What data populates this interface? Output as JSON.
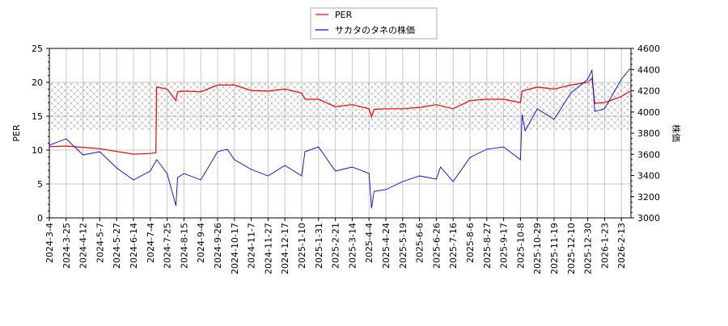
{
  "chart_data": {
    "type": "line",
    "title": "",
    "xlabel": "",
    "ylabel_left": "PER",
    "ylabel_right": "株価",
    "ylim_left": [
      0,
      25
    ],
    "ylim_right": [
      3000,
      4600
    ],
    "yticks_left": [
      0,
      5,
      10,
      15,
      20,
      25
    ],
    "yticks_right": [
      3000,
      3200,
      3400,
      3600,
      3800,
      4000,
      4200,
      4400,
      4600
    ],
    "xticks": [
      "2024-3-4",
      "2024-3-25",
      "2024-4-12",
      "2024-5-7",
      "2024-5-27",
      "2024-6-14",
      "2024-7-4",
      "2024-7-25",
      "2024-8-15",
      "2024-9-4",
      "2024-9-26",
      "2024-10-17",
      "2024-11-7",
      "2024-11-27",
      "2024-12-17",
      "2025-1-10",
      "2025-1-31",
      "2025-2-21",
      "2025-3-14",
      "2025-4-4",
      "2025-4-24",
      "2025-5-19",
      "2025-6-6",
      "2025-6-26",
      "2025-7-16",
      "2025-8-6",
      "2025-8-27",
      "2025-9-17",
      "2025-10-8",
      "2025-10-29",
      "2025-11-19",
      "2025-12-10",
      "2025-12-30",
      "2026-1-23",
      "2026-2-13"
    ],
    "grid": true,
    "legend_position": "top-center",
    "shaded_band_left": [
      13,
      20
    ],
    "colors": {
      "per": "#ff0000",
      "price": "#0000ff",
      "band": "#999999",
      "grid": "#c8c8c8"
    },
    "series": [
      {
        "name": "PER",
        "axis": "left",
        "points": [
          [
            "2024-3-4",
            10.5
          ],
          [
            "2024-3-25",
            10.6
          ],
          [
            "2024-4-12",
            10.4
          ],
          [
            "2024-5-7",
            10.2
          ],
          [
            "2024-5-27",
            9.8
          ],
          [
            "2024-6-14",
            9.4
          ],
          [
            "2024-7-4",
            9.5
          ],
          [
            "2024-7-11",
            9.6
          ],
          [
            "2024-7-12",
            19.3
          ],
          [
            "2024-7-25",
            19.0
          ],
          [
            "2024-8-5",
            17.3
          ],
          [
            "2024-8-7",
            18.6
          ],
          [
            "2024-8-15",
            18.7
          ],
          [
            "2024-9-4",
            18.6
          ],
          [
            "2024-9-26",
            19.6
          ],
          [
            "2024-10-17",
            19.6
          ],
          [
            "2024-11-7",
            18.8
          ],
          [
            "2024-11-27",
            18.7
          ],
          [
            "2024-12-17",
            19.0
          ],
          [
            "2025-1-10",
            18.4
          ],
          [
            "2025-1-14",
            17.5
          ],
          [
            "2025-1-31",
            17.5
          ],
          [
            "2025-2-21",
            16.4
          ],
          [
            "2025-3-14",
            16.7
          ],
          [
            "2025-4-4",
            16.1
          ],
          [
            "2025-4-7",
            14.9
          ],
          [
            "2025-4-10",
            16.0
          ],
          [
            "2025-4-24",
            16.1
          ],
          [
            "2025-5-19",
            16.1
          ],
          [
            "2025-6-6",
            16.3
          ],
          [
            "2025-6-26",
            16.7
          ],
          [
            "2025-7-16",
            16.1
          ],
          [
            "2025-8-6",
            17.3
          ],
          [
            "2025-8-27",
            17.5
          ],
          [
            "2025-9-17",
            17.5
          ],
          [
            "2025-10-8",
            17.0
          ],
          [
            "2025-10-10",
            18.7
          ],
          [
            "2025-10-29",
            19.3
          ],
          [
            "2025-11-19",
            19.0
          ],
          [
            "2025-12-10",
            19.6
          ],
          [
            "2025-12-30",
            20.0
          ],
          [
            "2026-1-5",
            20.6
          ],
          [
            "2026-1-9",
            16.9
          ],
          [
            "2026-1-23",
            17.0
          ],
          [
            "2026-2-13",
            17.9
          ],
          [
            "2026-2-24",
            18.7
          ]
        ]
      },
      {
        "name": "サカタのタネの株価",
        "axis": "right",
        "points": [
          [
            "2024-3-4",
            3686
          ],
          [
            "2024-3-25",
            3747
          ],
          [
            "2024-4-12",
            3594
          ],
          [
            "2024-5-7",
            3625
          ],
          [
            "2024-5-27",
            3472
          ],
          [
            "2024-6-14",
            3358
          ],
          [
            "2024-7-4",
            3442
          ],
          [
            "2024-7-12",
            3549
          ],
          [
            "2024-7-25",
            3419
          ],
          [
            "2024-8-5",
            3114
          ],
          [
            "2024-8-7",
            3380
          ],
          [
            "2024-8-15",
            3419
          ],
          [
            "2024-9-4",
            3358
          ],
          [
            "2024-9-26",
            3625
          ],
          [
            "2024-10-8",
            3648
          ],
          [
            "2024-10-17",
            3549
          ],
          [
            "2024-11-7",
            3457
          ],
          [
            "2024-11-27",
            3396
          ],
          [
            "2024-12-17",
            3495
          ],
          [
            "2025-1-10",
            3396
          ],
          [
            "2025-1-14",
            3625
          ],
          [
            "2025-1-31",
            3670
          ],
          [
            "2025-2-21",
            3442
          ],
          [
            "2025-3-14",
            3480
          ],
          [
            "2025-4-4",
            3419
          ],
          [
            "2025-4-7",
            3091
          ],
          [
            "2025-4-10",
            3250
          ],
          [
            "2025-4-24",
            3267
          ],
          [
            "2025-5-19",
            3343
          ],
          [
            "2025-6-6",
            3396
          ],
          [
            "2025-6-26",
            3366
          ],
          [
            "2025-7-1",
            3480
          ],
          [
            "2025-7-16",
            3343
          ],
          [
            "2025-8-6",
            3571
          ],
          [
            "2025-8-27",
            3648
          ],
          [
            "2025-9-17",
            3670
          ],
          [
            "2025-10-8",
            3549
          ],
          [
            "2025-10-10",
            3975
          ],
          [
            "2025-10-14",
            3823
          ],
          [
            "2025-10-29",
            4029
          ],
          [
            "2025-11-19",
            3930
          ],
          [
            "2025-12-10",
            4181
          ],
          [
            "2025-12-30",
            4310
          ],
          [
            "2026-1-5",
            4394
          ],
          [
            "2026-1-9",
            4006
          ],
          [
            "2026-1-23",
            4029
          ],
          [
            "2026-2-13",
            4310
          ],
          [
            "2026-2-24",
            4410
          ]
        ]
      }
    ]
  }
}
